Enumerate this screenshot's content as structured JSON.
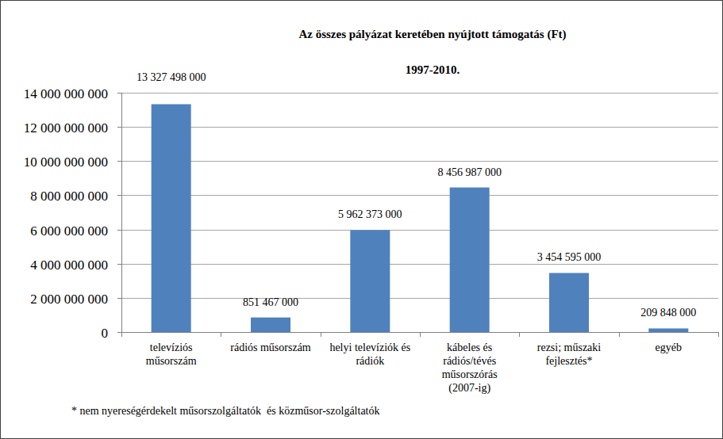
{
  "chart_data": {
    "type": "bar",
    "title": "Az összes pályázat keretében nyújtott támogatás (Ft)",
    "subtitle": "1997-2010.",
    "categories": [
      "televíziós műsorszám",
      "rádiós műsorszám",
      "helyi televíziók és rádiók",
      "kábeles és rádiós/tévés műsorszórás (2007-ig)",
      "rezsi; műszaki fejlesztés*",
      "egyéb"
    ],
    "values": [
      13327498000,
      851467000,
      5962373000,
      8456987000,
      3454595000,
      209848000
    ],
    "value_labels": [
      "13 327 498 000",
      "851 467 000",
      "5 962 373 000",
      "8 456 987 000",
      "3 454 595 000",
      "209 848 000"
    ],
    "color": "#4f81bd",
    "ylim": [
      0,
      14000000000
    ],
    "yticks": [
      0,
      {
        "value": 2000000000,
        "label": "2 000 000 000"
      },
      {
        "value": 4000000000,
        "label": "4 000 000 000"
      },
      {
        "value": 6000000000,
        "label": "6 000 000 000"
      },
      {
        "value": 8000000000,
        "label": "8 000 000 000"
      },
      {
        "value": 10000000000,
        "label": "10 000 000 000"
      },
      {
        "value": 12000000000,
        "label": "12 000 000 000"
      },
      {
        "value": 14000000000,
        "label": "14 000 000 000"
      }
    ],
    "grid": true,
    "data_labels": true,
    "annotations": [
      "* nem nyereségérdekelt műsorszolgáltatók  és közműsor-szolgáltatók"
    ]
  }
}
